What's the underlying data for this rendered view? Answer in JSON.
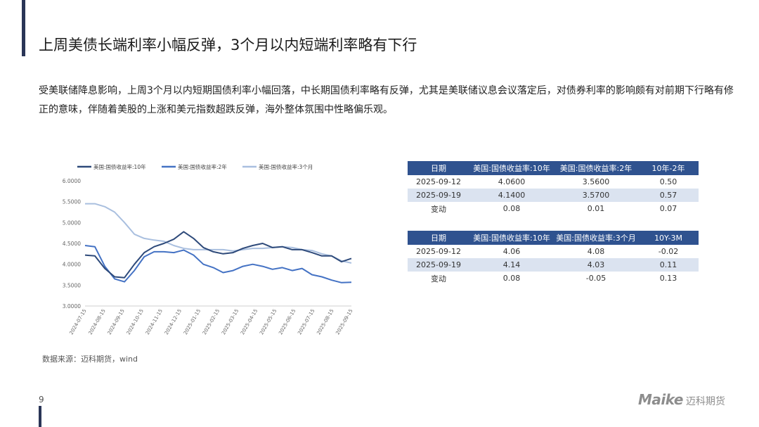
{
  "title": "上周美债长端利率小幅反弹，3个月以内短端利率略有下行",
  "paragraph": "受美联储降息影响，上周3个月以内短期国债利率小幅回落，中长期国债利率略有反弹，尤其是美联储议息会议落定后，对债券利率的影响颇有对前期下行略有修正的意味，伴随着美股的上涨和美元指数超跌反弹，海外整体氛围中性略偏乐观。",
  "source": "数据来源：迈科期货，wind",
  "page_number": "9",
  "logo": {
    "en": "Maike",
    "cn": "迈科期货"
  },
  "colors": {
    "accent": "#2a3557",
    "table_header": "#2f528f",
    "table_alt": "#dbe3f0",
    "line_10y": "#2e4a7a",
    "line_2y": "#4472c4",
    "line_3m": "#a9bfdf"
  },
  "table1": {
    "headers": [
      "日期",
      "美国:国债收益率:10年",
      "美国:国债收益率:2年",
      "10年-2年"
    ],
    "rows": [
      [
        "2025-09-12",
        "4.0600",
        "3.5600",
        "0.50"
      ],
      [
        "2025-09-19",
        "4.1400",
        "3.5700",
        "0.57"
      ],
      [
        "变动",
        "0.08",
        "0.01",
        "0.07"
      ]
    ]
  },
  "table2": {
    "headers": [
      "日期",
      "美国:国债收益率:10年",
      "美国:国债收益率:3个月",
      "10Y-3M"
    ],
    "rows": [
      [
        "2025-09-12",
        "4.06",
        "4.08",
        "-0.02"
      ],
      [
        "2025-09-19",
        "4.14",
        "4.03",
        "0.11"
      ],
      [
        "变动",
        "0.08",
        "-0.05",
        "0.13"
      ]
    ]
  },
  "chart_data": {
    "type": "line",
    "title": "",
    "xlabel": "",
    "ylabel": "",
    "ylim": [
      3.0,
      6.0
    ],
    "y_ticks": [
      "6.0000",
      "5.5000",
      "5.0000",
      "4.5000",
      "4.0000",
      "3.5000",
      "3.0000"
    ],
    "x_ticks": [
      "2024-07-15",
      "2024-08-15",
      "2024-09-15",
      "2024-10-15",
      "2024-11-15",
      "2024-12-15",
      "2025-01-15",
      "2025-02-15",
      "2025-03-15",
      "2025-04-15",
      "2025-05-15",
      "2025-06-15",
      "2025-07-15",
      "2025-08-15",
      "2025-09-15"
    ],
    "legend_position": "top",
    "grid": false,
    "series": [
      {
        "name": "美国:国债收益率:10年",
        "color": "#2e4a7a",
        "values": [
          4.22,
          4.2,
          3.9,
          3.7,
          3.68,
          4.0,
          4.28,
          4.42,
          4.5,
          4.6,
          4.78,
          4.62,
          4.4,
          4.3,
          4.25,
          4.28,
          4.38,
          4.45,
          4.5,
          4.4,
          4.42,
          4.35,
          4.35,
          4.28,
          4.2,
          4.2,
          4.06,
          4.14
        ]
      },
      {
        "name": "美国:国债收益率:2年",
        "color": "#4472c4",
        "values": [
          4.45,
          4.42,
          3.95,
          3.65,
          3.58,
          3.85,
          4.18,
          4.3,
          4.3,
          4.28,
          4.34,
          4.22,
          4.0,
          3.92,
          3.8,
          3.85,
          3.95,
          4.0,
          3.95,
          3.88,
          3.92,
          3.85,
          3.9,
          3.75,
          3.7,
          3.62,
          3.56,
          3.57
        ]
      },
      {
        "name": "美国:国债收益率:3个月",
        "color": "#a9bfdf",
        "values": [
          5.45,
          5.45,
          5.38,
          5.25,
          5.0,
          4.72,
          4.62,
          4.58,
          4.55,
          4.45,
          4.38,
          4.35,
          4.35,
          4.35,
          4.35,
          4.32,
          4.35,
          4.38,
          4.38,
          4.4,
          4.42,
          4.4,
          4.35,
          4.33,
          4.25,
          4.2,
          4.08,
          4.03
        ]
      }
    ]
  }
}
